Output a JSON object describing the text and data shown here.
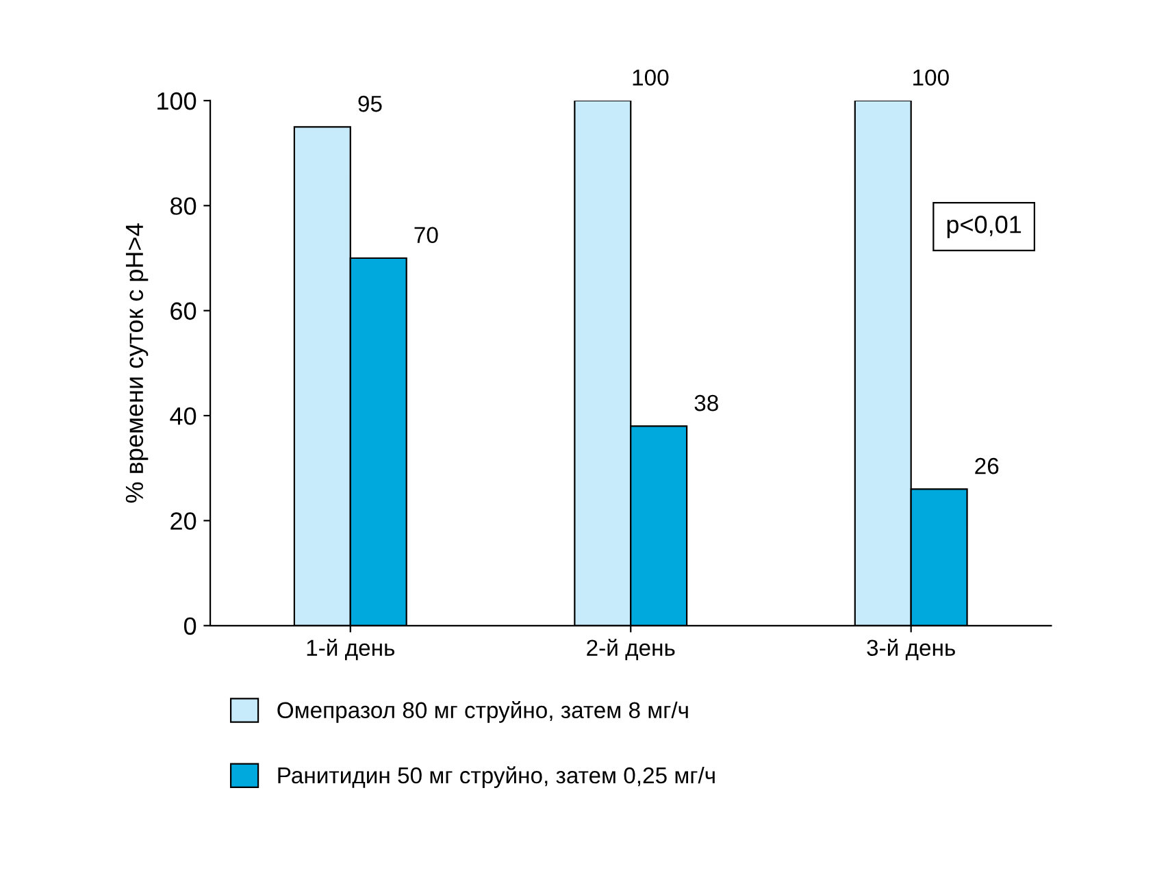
{
  "chart_data": {
    "type": "bar",
    "ylabel": "% времени суток с pH>4",
    "categories": [
      "1-й день",
      "2-й день",
      "3-й день"
    ],
    "series": [
      {
        "name": "Омепразол 80 мг струйно, затем 8 мг/ч",
        "color": "#c7ebfa",
        "values": [
          95,
          100,
          100
        ]
      },
      {
        "name": "Ранитидин 50 мг струйно, затем 0,25 мг/ч",
        "color": "#00a9dd",
        "values": [
          70,
          38,
          26
        ]
      }
    ],
    "ylim": [
      0,
      100
    ],
    "yticks": [
      0,
      20,
      40,
      60,
      80,
      100
    ],
    "data_labels": true,
    "grid": false,
    "legend": "bottom",
    "annotations": [
      "p<0,01"
    ]
  }
}
